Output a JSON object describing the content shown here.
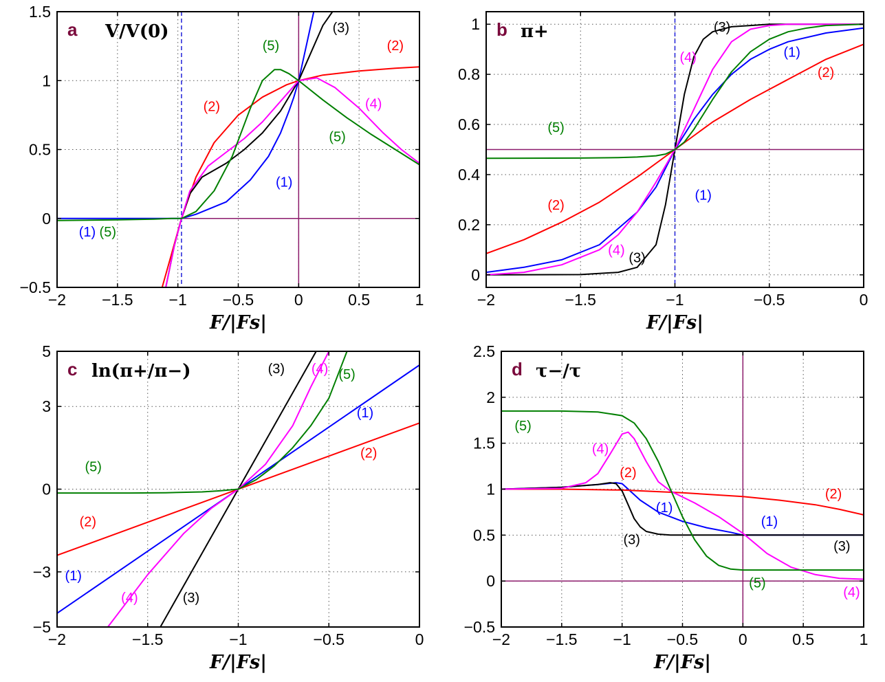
{
  "chart_data": [
    {
      "panel": "a",
      "type": "line",
      "title": "V/V(0)",
      "xlabel": "F/|Fs|",
      "xlim": [
        -2,
        1
      ],
      "ylim": [
        -0.5,
        1.5
      ],
      "xticks": [
        "-2",
        "-1.5",
        "-1",
        "-0.5",
        "0",
        "0.5",
        "1"
      ],
      "yticks": [
        "-0.5",
        "0",
        "0.5",
        "1",
        "1.5"
      ],
      "grid": true,
      "vlines": [
        {
          "x": -0.97,
          "style": "dashed",
          "color": "#1f1fd8"
        },
        {
          "x": 0,
          "style": "solid",
          "color": "#8b1a6b"
        }
      ],
      "hlines": [
        {
          "y": 0,
          "style": "solid",
          "color": "#8b1a6b"
        }
      ],
      "series": [
        {
          "color": "#0000ff",
          "x": [
            -2,
            -1.5,
            -1.1,
            -0.97,
            -0.85,
            -0.6,
            -0.4,
            -0.25,
            -0.15,
            -0.08,
            -0.04,
            0,
            0.05,
            0.1,
            0.15
          ],
          "y": [
            0,
            0,
            0,
            0.0,
            0.03,
            0.12,
            0.28,
            0.45,
            0.62,
            0.78,
            0.88,
            1,
            1.2,
            1.4,
            1.6
          ]
        },
        {
          "color": "#ff0000",
          "x": [
            -1.13,
            -1.05,
            -0.97,
            -0.85,
            -0.7,
            -0.5,
            -0.3,
            -0.1,
            0,
            0.2,
            0.5,
            0.8,
            1.0
          ],
          "y": [
            -0.5,
            -0.25,
            0.0,
            0.3,
            0.55,
            0.75,
            0.88,
            0.97,
            1,
            1.04,
            1.07,
            1.09,
            1.1
          ]
        },
        {
          "color": "#000000",
          "x": [
            -1.1,
            -1.03,
            -0.97,
            -0.9,
            -0.8,
            -0.6,
            -0.45,
            -0.3,
            -0.15,
            0,
            0.1,
            0.2,
            0.28
          ],
          "y": [
            -0.5,
            -0.2,
            0.0,
            0.18,
            0.3,
            0.4,
            0.5,
            0.62,
            0.78,
            1,
            1.2,
            1.4,
            1.5
          ]
        },
        {
          "color": "#ff00ff",
          "x": [
            -1.1,
            -1.03,
            -0.97,
            -0.9,
            -0.75,
            -0.6,
            -0.45,
            -0.3,
            -0.15,
            0,
            0.15,
            0.3,
            0.5,
            0.7,
            0.85,
            1.0
          ],
          "y": [
            -0.5,
            -0.2,
            0.0,
            0.2,
            0.38,
            0.48,
            0.58,
            0.7,
            0.85,
            1,
            1.02,
            0.95,
            0.8,
            0.62,
            0.5,
            0.4
          ]
        },
        {
          "color": "#007f00",
          "x": [
            -2,
            -1.5,
            -1.2,
            -1.05,
            -0.97,
            -0.85,
            -0.7,
            -0.55,
            -0.4,
            -0.3,
            -0.2,
            -0.15,
            -0.08,
            0,
            0.2,
            0.4,
            0.6,
            0.8,
            1.0
          ],
          "y": [
            -0.015,
            -0.01,
            -0.005,
            0,
            0.0,
            0.05,
            0.2,
            0.45,
            0.8,
            1.0,
            1.08,
            1.08,
            1.05,
            1,
            0.86,
            0.73,
            0.61,
            0.5,
            0.39
          ]
        }
      ],
      "curve_labels": [
        {
          "text": "(1)",
          "color": "#0000ff",
          "x": -0.12,
          "y": 0.23
        },
        {
          "text": "(1)",
          "color": "#0000ff",
          "x": -1.75,
          "y": -0.13
        },
        {
          "text": "(5)",
          "color": "#007f00",
          "x": -1.58,
          "y": -0.13
        },
        {
          "text": "(2)",
          "color": "#ff0000",
          "x": -0.72,
          "y": 0.78
        },
        {
          "text": "(2)",
          "color": "#ff0000",
          "x": 0.8,
          "y": 1.22
        },
        {
          "text": "(3)",
          "color": "#000000",
          "x": 0.35,
          "y": 1.35
        },
        {
          "text": "(4)",
          "color": "#ff00ff",
          "x": 0.62,
          "y": 0.8
        },
        {
          "text": "(5)",
          "color": "#007f00",
          "x": -0.23,
          "y": 1.22
        },
        {
          "text": "(5)",
          "color": "#007f00",
          "x": 0.32,
          "y": 0.56
        }
      ]
    },
    {
      "panel": "b",
      "type": "line",
      "title": "π+",
      "xlabel": "F/|Fs|",
      "xlim": [
        -2,
        0
      ],
      "ylim": [
        -0.05,
        1.05
      ],
      "xticks": [
        "-2",
        "-1.5",
        "-1",
        "-0.5",
        "0"
      ],
      "yticks": [
        "0",
        "0.2",
        "0.4",
        "0.6",
        "0.8",
        "1"
      ],
      "grid": true,
      "vlines": [
        {
          "x": -1,
          "style": "dashed",
          "color": "#1f1fd8"
        }
      ],
      "hlines": [
        {
          "y": 0.5,
          "style": "solid",
          "color": "#8b1a6b"
        }
      ],
      "series": [
        {
          "color": "#0000ff",
          "x": [
            -2,
            -1.8,
            -1.6,
            -1.4,
            -1.2,
            -1.1,
            -1,
            -0.9,
            -0.8,
            -0.7,
            -0.6,
            -0.5,
            -0.4,
            -0.2,
            0
          ],
          "y": [
            0.01,
            0.03,
            0.06,
            0.12,
            0.25,
            0.35,
            0.5,
            0.62,
            0.72,
            0.8,
            0.86,
            0.9,
            0.93,
            0.965,
            0.985
          ]
        },
        {
          "color": "#ff0000",
          "x": [
            -2,
            -1.8,
            -1.6,
            -1.4,
            -1.2,
            -1,
            -0.8,
            -0.6,
            -0.4,
            -0.2,
            0
          ],
          "y": [
            0.085,
            0.14,
            0.21,
            0.29,
            0.39,
            0.5,
            0.61,
            0.7,
            0.78,
            0.86,
            0.92
          ]
        },
        {
          "color": "#000000",
          "x": [
            -2,
            -1.5,
            -1.3,
            -1.2,
            -1.1,
            -1.05,
            -1,
            -0.95,
            -0.9,
            -0.85,
            -0.8,
            -0.7,
            -0.6,
            -0.5,
            0
          ],
          "y": [
            0,
            0.001,
            0.01,
            0.03,
            0.12,
            0.28,
            0.5,
            0.72,
            0.87,
            0.94,
            0.97,
            0.99,
            0.995,
            1,
            1
          ]
        },
        {
          "color": "#ff00ff",
          "x": [
            -2,
            -1.8,
            -1.6,
            -1.4,
            -1.3,
            -1.2,
            -1.1,
            -1,
            -0.9,
            -0.8,
            -0.7,
            -0.6,
            -0.5,
            -0.4,
            -0.2,
            0
          ],
          "y": [
            0.0,
            0.01,
            0.04,
            0.1,
            0.16,
            0.25,
            0.37,
            0.5,
            0.66,
            0.82,
            0.93,
            0.98,
            0.995,
            1,
            1,
            1
          ]
        },
        {
          "color": "#007f00",
          "x": [
            -2,
            -1.5,
            -1.3,
            -1.2,
            -1.1,
            -1.05,
            -1,
            -0.95,
            -0.9,
            -0.85,
            -0.8,
            -0.7,
            -0.6,
            -0.5,
            -0.4,
            -0.3,
            -0.2,
            0
          ],
          "y": [
            0.465,
            0.466,
            0.468,
            0.47,
            0.475,
            0.482,
            0.5,
            0.53,
            0.58,
            0.64,
            0.7,
            0.81,
            0.89,
            0.94,
            0.97,
            0.985,
            0.995,
            1
          ]
        }
      ],
      "curve_labels": [
        {
          "text": "(1)",
          "color": "#0000ff",
          "x": -0.38,
          "y": 0.87
        },
        {
          "text": "(1)",
          "color": "#0000ff",
          "x": -0.85,
          "y": 0.3
        },
        {
          "text": "(2)",
          "color": "#ff0000",
          "x": -0.2,
          "y": 0.79
        },
        {
          "text": "(2)",
          "color": "#ff0000",
          "x": -1.63,
          "y": 0.26
        },
        {
          "text": "(3)",
          "color": "#000000",
          "x": -0.75,
          "y": 0.97
        },
        {
          "text": "(3)",
          "color": "#000000",
          "x": -1.2,
          "y": 0.05
        },
        {
          "text": "(4)",
          "color": "#ff00ff",
          "x": -0.93,
          "y": 0.85
        },
        {
          "text": "(4)",
          "color": "#ff00ff",
          "x": -1.31,
          "y": 0.08
        },
        {
          "text": "(5)",
          "color": "#007f00",
          "x": -1.63,
          "y": 0.57
        }
      ]
    },
    {
      "panel": "c",
      "type": "line",
      "title": "ln(π+/π−)",
      "xlabel": "F/|Fs|",
      "xlim": [
        -2,
        0
      ],
      "ylim": [
        -5,
        5
      ],
      "xticks": [
        "-2",
        "-1.5",
        "-1",
        "-0.5",
        "0"
      ],
      "yticks": [
        "-5",
        "-3",
        "0",
        "3",
        "5"
      ],
      "ytick_values": [
        -5,
        -3,
        0,
        3,
        5
      ],
      "grid": true,
      "series": [
        {
          "color": "#0000ff",
          "x": [
            -2,
            0
          ],
          "y": [
            -4.5,
            4.5
          ]
        },
        {
          "color": "#ff0000",
          "x": [
            -2,
            0
          ],
          "y": [
            -2.4,
            2.4
          ]
        },
        {
          "color": "#000000",
          "x": [
            -1.43,
            -0.57
          ],
          "y": [
            -5,
            5
          ]
        },
        {
          "color": "#ff00ff",
          "x": [
            -1.72,
            -1.5,
            -1.3,
            -1.15,
            -1,
            -0.85,
            -0.7,
            -0.6,
            -0.5
          ],
          "y": [
            -5,
            -3.1,
            -1.6,
            -0.7,
            0,
            0.9,
            2.3,
            3.7,
            5
          ]
        },
        {
          "color": "#007f00",
          "x": [
            -2,
            -1.6,
            -1.4,
            -1.2,
            -1.1,
            -1,
            -0.9,
            -0.8,
            -0.7,
            -0.6,
            -0.5,
            -0.4
          ],
          "y": [
            -0.14,
            -0.14,
            -0.13,
            -0.1,
            -0.06,
            0,
            0.35,
            0.85,
            1.5,
            2.3,
            3.3,
            5
          ]
        }
      ],
      "curve_labels": [
        {
          "text": "(1)",
          "color": "#0000ff",
          "x": -0.3,
          "y": 2.6
        },
        {
          "text": "(1)",
          "color": "#0000ff",
          "x": -1.91,
          "y": -3.3
        },
        {
          "text": "(2)",
          "color": "#ff0000",
          "x": -0.28,
          "y": 1.15
        },
        {
          "text": "(2)",
          "color": "#ff0000",
          "x": -1.83,
          "y": -1.35
        },
        {
          "text": "(3)",
          "color": "#000000",
          "x": -0.79,
          "y": 4.2
        },
        {
          "text": "(3)",
          "color": "#000000",
          "x": -1.26,
          "y": -4.1
        },
        {
          "text": "(4)",
          "color": "#ff00ff",
          "x": -0.55,
          "y": 4.2
        },
        {
          "text": "(4)",
          "color": "#ff00ff",
          "x": -1.6,
          "y": -4.1
        },
        {
          "text": "(5)",
          "color": "#007f00",
          "x": -0.4,
          "y": 4.0
        },
        {
          "text": "(5)",
          "color": "#007f00",
          "x": -1.8,
          "y": 0.65
        }
      ]
    },
    {
      "panel": "d",
      "type": "line",
      "title": "τ−/τ",
      "xlabel": "F/|Fs|",
      "xlim": [
        -2,
        1
      ],
      "ylim": [
        -0.5,
        2.5
      ],
      "xticks": [
        "-2",
        "-1.5",
        "-1",
        "-0.5",
        "0",
        "0.5",
        "1"
      ],
      "yticks": [
        "-0.5",
        "0",
        "0.5",
        "1",
        "1.5",
        "2",
        "2.5"
      ],
      "grid": true,
      "vlines": [
        {
          "x": 0,
          "style": "solid",
          "color": "#8b1a6b"
        }
      ],
      "hlines": [
        {
          "y": 0,
          "style": "solid",
          "color": "#8b1a6b"
        }
      ],
      "series": [
        {
          "color": "#0000ff",
          "x": [
            -2,
            -1.5,
            -1.2,
            -1.05,
            -1,
            -0.95,
            -0.85,
            -0.7,
            -0.5,
            -0.3,
            -0.1,
            0,
            0.5,
            1
          ],
          "y": [
            1,
            1.02,
            1.05,
            1.07,
            1.06,
            1.0,
            0.88,
            0.75,
            0.65,
            0.58,
            0.53,
            0.5,
            0.5,
            0.5
          ]
        },
        {
          "color": "#ff0000",
          "x": [
            -2,
            -1.5,
            -1,
            -0.5,
            0,
            0.3,
            0.6,
            0.8,
            1
          ],
          "y": [
            1,
            1,
            0.99,
            0.96,
            0.92,
            0.88,
            0.83,
            0.78,
            0.72
          ]
        },
        {
          "color": "#000000",
          "x": [
            -2,
            -1.5,
            -1.2,
            -1.1,
            -1.05,
            -1.0,
            -0.95,
            -0.9,
            -0.85,
            -0.8,
            -0.7,
            -0.6,
            -0.5,
            0,
            1
          ],
          "y": [
            1,
            1.02,
            1.05,
            1.07,
            1.06,
            0.98,
            0.83,
            0.68,
            0.59,
            0.54,
            0.51,
            0.5,
            0.5,
            0.5,
            0.5
          ]
        },
        {
          "color": "#ff00ff",
          "x": [
            -2,
            -1.5,
            -1.3,
            -1.2,
            -1.1,
            -1.0,
            -0.95,
            -0.9,
            -0.8,
            -0.7,
            -0.6,
            -0.4,
            -0.2,
            0,
            0.2,
            0.4,
            0.6,
            0.8,
            1.0
          ],
          "y": [
            1,
            1.01,
            1.07,
            1.17,
            1.38,
            1.6,
            1.62,
            1.55,
            1.3,
            1.08,
            0.98,
            0.85,
            0.7,
            0.52,
            0.3,
            0.15,
            0.07,
            0.03,
            0.02
          ]
        },
        {
          "color": "#007f00",
          "x": [
            -2,
            -1.5,
            -1.2,
            -1.0,
            -0.9,
            -0.8,
            -0.7,
            -0.6,
            -0.5,
            -0.4,
            -0.3,
            -0.2,
            -0.1,
            0,
            0.5,
            1
          ],
          "y": [
            1.85,
            1.85,
            1.84,
            1.8,
            1.72,
            1.55,
            1.3,
            1.0,
            0.7,
            0.45,
            0.27,
            0.17,
            0.13,
            0.12,
            0.12,
            0.12
          ]
        }
      ],
      "curve_labels": [
        {
          "text": "(1)",
          "color": "#0000ff",
          "x": -0.65,
          "y": 0.75
        },
        {
          "text": "(1)",
          "color": "#0000ff",
          "x": 0.22,
          "y": 0.6
        },
        {
          "text": "(2)",
          "color": "#ff0000",
          "x": -0.95,
          "y": 1.13
        },
        {
          "text": "(2)",
          "color": "#ff0000",
          "x": 0.75,
          "y": 0.9
        },
        {
          "text": "(3)",
          "color": "#000000",
          "x": -0.92,
          "y": 0.4
        },
        {
          "text": "(3)",
          "color": "#000000",
          "x": 0.82,
          "y": 0.33
        },
        {
          "text": "(4)",
          "color": "#ff00ff",
          "x": -1.18,
          "y": 1.39
        },
        {
          "text": "(4)",
          "color": "#ff00ff",
          "x": 0.9,
          "y": -0.17
        },
        {
          "text": "(5)",
          "color": "#007f00",
          "x": -1.82,
          "y": 1.64
        },
        {
          "text": "(5)",
          "color": "#007f00",
          "x": 0.12,
          "y": -0.07
        }
      ]
    }
  ]
}
